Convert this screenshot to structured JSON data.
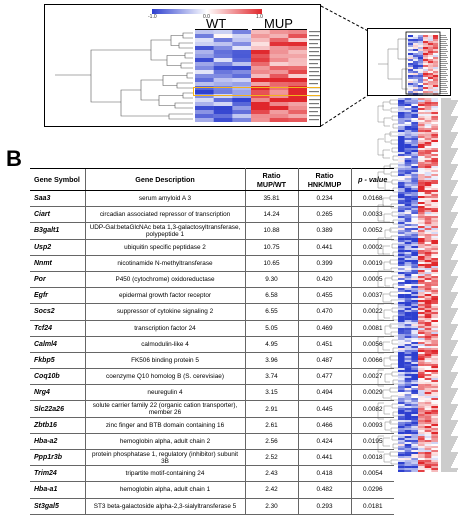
{
  "panel_b": {
    "letter": "B"
  },
  "heatmap": {
    "legend_ticks": [
      "-1.0",
      "0.0",
      "1.0"
    ],
    "groups": [
      "WT",
      "MUP"
    ],
    "colors": {
      "low": "#2d3fcf",
      "mid": "#ffffff",
      "high": "#e0262b",
      "highlight": "#f2b21b"
    }
  },
  "table": {
    "headers": {
      "symbol": "Gene Symbol",
      "description": "Gene Description",
      "ratio_mup_wt": "Ratio MUP/WT",
      "ratio_hnk_mup": "Ratio HNK/MUP",
      "pvalue": "p - value"
    },
    "rows": [
      {
        "symbol": "Saa3",
        "description": "serum amyloid A 3",
        "mup_wt": "35.81",
        "hnk_mup": "0.234",
        "p": "0.0168"
      },
      {
        "symbol": "Ciart",
        "description": "circadian associated repressor of transcription",
        "mup_wt": "14.24",
        "hnk_mup": "0.265",
        "p": "0.0033"
      },
      {
        "symbol": "B3galt1",
        "description": "UDP-Gal:betaGlcNAc beta 1,3-galactosyltransferase, polypeptide 1",
        "mup_wt": "10.88",
        "hnk_mup": "0.389",
        "p": "0.0052"
      },
      {
        "symbol": "Usp2",
        "description": "ubiquitin specific peptidase 2",
        "mup_wt": "10.75",
        "hnk_mup": "0.441",
        "p": "0.0002"
      },
      {
        "symbol": "Nnmt",
        "description": "nicotinamide N-methyltransferase",
        "mup_wt": "10.65",
        "hnk_mup": "0.399",
        "p": "0.0019"
      },
      {
        "symbol": "Por",
        "description": "P450 (cytochrome) oxidoreductase",
        "mup_wt": "9.30",
        "hnk_mup": "0.420",
        "p": "0.0005"
      },
      {
        "symbol": "Egfr",
        "description": "epidermal growth factor receptor",
        "mup_wt": "6.58",
        "hnk_mup": "0.455",
        "p": "0.0037"
      },
      {
        "symbol": "Socs2",
        "description": "suppressor of cytokine signaling 2",
        "mup_wt": "6.55",
        "hnk_mup": "0.470",
        "p": "0.0022"
      },
      {
        "symbol": "Tcf24",
        "description": "transcription factor 24",
        "mup_wt": "5.05",
        "hnk_mup": "0.469",
        "p": "0.0081"
      },
      {
        "symbol": "Calml4",
        "description": "calmodulin-like 4",
        "mup_wt": "4.95",
        "hnk_mup": "0.451",
        "p": "0.0056"
      },
      {
        "symbol": "Fkbp5",
        "description": "FK506 binding protein 5",
        "mup_wt": "3.96",
        "hnk_mup": "0.487",
        "p": "0.0066"
      },
      {
        "symbol": "Coq10b",
        "description": "coenzyme Q10 homolog B (S. cerevisiae)",
        "mup_wt": "3.74",
        "hnk_mup": "0.477",
        "p": "0.0027"
      },
      {
        "symbol": "Nrg4",
        "description": "neuregulin 4",
        "mup_wt": "3.15",
        "hnk_mup": "0.494",
        "p": "0.0029"
      },
      {
        "symbol": "Slc22a26",
        "description": "solute carrier family 22 (organic cation transporter), member 26",
        "mup_wt": "2.91",
        "hnk_mup": "0.445",
        "p": "0.0082"
      },
      {
        "symbol": "Zbtb16",
        "description": "zinc finger and BTB domain containing 16",
        "mup_wt": "2.61",
        "hnk_mup": "0.466",
        "p": "0.0093"
      },
      {
        "symbol": "Hba-a2",
        "description": "hemoglobin alpha, adult chain 2",
        "mup_wt": "2.56",
        "hnk_mup": "0.424",
        "p": "0.0195"
      },
      {
        "symbol": "Ppp1r3b",
        "description": "protein phosphatase 1, regulatory (inhibitor) subunit 3B",
        "mup_wt": "2.52",
        "hnk_mup": "0.441",
        "p": "0.0018"
      },
      {
        "symbol": "Trim24",
        "description": "tripartite motif-containing 24",
        "mup_wt": "2.43",
        "hnk_mup": "0.418",
        "p": "0.0054"
      },
      {
        "symbol": "Hba-a1",
        "description": "hemoglobin alpha, adult chain 1",
        "mup_wt": "2.42",
        "hnk_mup": "0.482",
        "p": "0.0296"
      },
      {
        "symbol": "St3gal5",
        "description": "ST3 beta-galactoside alpha-2,3-sialyltransferase 5",
        "mup_wt": "2.30",
        "hnk_mup": "0.293",
        "p": "0.0181"
      }
    ]
  }
}
